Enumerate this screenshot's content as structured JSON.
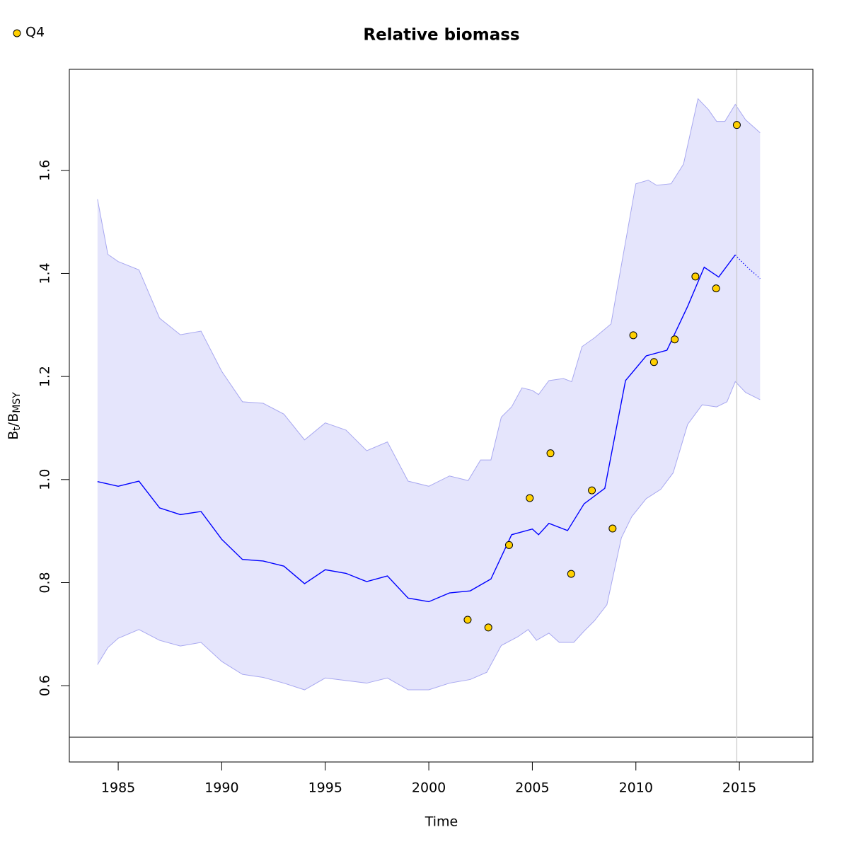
{
  "chart_data": {
    "type": "band-line",
    "title": "Relative biomass",
    "xlabel": "Time",
    "ylabel": [
      "B",
      "t",
      "/B",
      "MSY"
    ],
    "legend": {
      "name": "Q4",
      "color": "#ffd000",
      "corner": "top-left"
    },
    "xlim": [
      1982.64,
      2018.55
    ],
    "ylim": [
      0.452,
      1.796
    ],
    "xticks": [
      1985,
      1990,
      1995,
      2000,
      2005,
      2010,
      2015
    ],
    "yticks": [
      0.6,
      0.8,
      {
        "value": 1,
        "label": "1.0"
      },
      1.2,
      1.4,
      1.6
    ],
    "hline": 0.5,
    "vline": 2014.875,
    "band_color": "#e5e5fc",
    "band_edge_color": "#a8a8f0",
    "line_color": "#0000ff",
    "upper": {
      "x": [
        1984,
        1984.5,
        1985,
        1986,
        1987,
        1988,
        1989,
        1990,
        1991,
        1992,
        1993,
        1994,
        1995,
        1996,
        1997,
        1998,
        1999,
        2000,
        2001,
        2001.9,
        2002.5,
        2003,
        2003.5,
        2004,
        2004.5,
        2005,
        2005.3,
        2005.8,
        2006.5,
        2006.9,
        2007.4,
        2008,
        2008.8,
        2009.3,
        2010,
        2010.6,
        2011,
        2011.7,
        2012.3,
        2013,
        2013.5,
        2013.9,
        2014.3,
        2014.8,
        2015.3,
        2016
      ],
      "values": [
        1.544,
        1.437,
        1.423,
        1.407,
        1.313,
        1.281,
        1.288,
        1.21,
        1.151,
        1.148,
        1.127,
        1.077,
        1.11,
        1.096,
        1.056,
        1.073,
        0.997,
        0.987,
        1.007,
        0.998,
        1.038,
        1.038,
        1.121,
        1.141,
        1.178,
        1.173,
        1.165,
        1.192,
        1.196,
        1.19,
        1.258,
        1.275,
        1.302,
        1.416,
        1.574,
        1.581,
        1.571,
        1.574,
        1.612,
        1.739,
        1.718,
        1.695,
        1.695,
        1.728,
        1.698,
        1.673
      ]
    },
    "lower": {
      "x": [
        1984,
        1984.5,
        1985,
        1986,
        1987,
        1988,
        1989,
        1990,
        1991,
        1992,
        1993,
        1994,
        1995,
        1996,
        1997,
        1998,
        1999,
        2000,
        2001,
        2002,
        2002.8,
        2003.5,
        2004.3,
        2004.8,
        2005.2,
        2005.8,
        2006.3,
        2007,
        2007.5,
        2008,
        2008.6,
        2009.3,
        2009.8,
        2010.5,
        2011.2,
        2011.8,
        2012.5,
        2013.2,
        2013.9,
        2014.4,
        2014.8,
        2015.3,
        2016
      ],
      "values": [
        0.641,
        0.674,
        0.692,
        0.709,
        0.688,
        0.677,
        0.684,
        0.647,
        0.622,
        0.616,
        0.605,
        0.592,
        0.615,
        0.61,
        0.605,
        0.615,
        0.592,
        0.592,
        0.605,
        0.612,
        0.626,
        0.678,
        0.695,
        0.709,
        0.688,
        0.702,
        0.684,
        0.684,
        0.706,
        0.726,
        0.757,
        0.887,
        0.928,
        0.963,
        0.981,
        1.013,
        1.107,
        1.145,
        1.141,
        1.151,
        1.19,
        1.169,
        1.155
      ]
    },
    "estimate": {
      "x": [
        1984,
        1985,
        1986,
        1987,
        1988,
        1989,
        1990,
        1991,
        1992,
        1993,
        1994,
        1995,
        1996,
        1997,
        1998,
        1999,
        2000,
        2001,
        2002,
        2003,
        2004,
        2005,
        2005.3,
        2005.8,
        2006.7,
        2007.5,
        2008.5,
        2009.5,
        2010.5,
        2011.5,
        2012.5,
        2013.3,
        2014,
        2014.8
      ],
      "values": [
        0.996,
        0.987,
        0.997,
        0.945,
        0.932,
        0.938,
        0.884,
        0.845,
        0.842,
        0.832,
        0.798,
        0.825,
        0.818,
        0.802,
        0.813,
        0.77,
        0.763,
        0.78,
        0.784,
        0.807,
        0.893,
        0.904,
        0.893,
        0.915,
        0.901,
        0.953,
        0.983,
        1.192,
        1.24,
        1.251,
        1.336,
        1.412,
        1.393,
        1.436
      ]
    },
    "forecast": {
      "x": [
        2014.8,
        2015.3,
        2016
      ],
      "values": [
        1.436,
        1.415,
        1.39
      ]
    },
    "observations": {
      "x": [
        2001.875,
        2002.875,
        2003.875,
        2004.875,
        2005.875,
        2006.875,
        2007.875,
        2008.875,
        2009.875,
        2010.875,
        2011.875,
        2012.875,
        2013.875,
        2014.875
      ],
      "values": [
        0.728,
        0.713,
        0.873,
        0.964,
        1.051,
        0.817,
        0.979,
        0.905,
        1.28,
        1.228,
        1.272,
        1.394,
        1.371,
        1.688
      ]
    }
  }
}
